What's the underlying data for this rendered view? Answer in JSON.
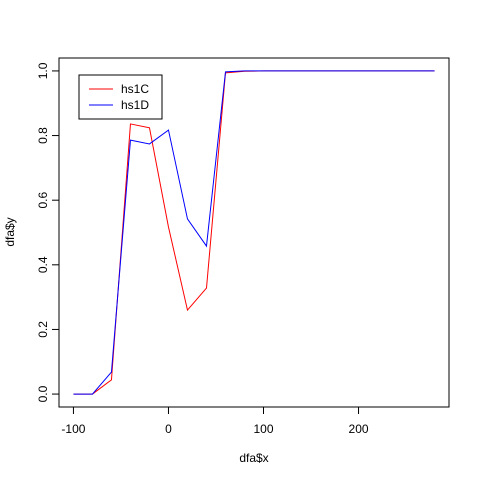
{
  "chart_data": {
    "type": "line",
    "x": [
      -100,
      -80,
      -60,
      -40,
      -20,
      0,
      20,
      40,
      60,
      80,
      100,
      120,
      140,
      160,
      180,
      200,
      220,
      240,
      260,
      280
    ],
    "series": [
      {
        "name": "hs1C",
        "color": "#ff0000",
        "values": [
          0,
          0,
          0.044,
          0.836,
          0.824,
          0.517,
          0.26,
          0.328,
          0.994,
          0.999,
          1,
          1,
          1,
          1,
          1,
          1,
          1,
          1,
          1,
          1
        ]
      },
      {
        "name": "hs1D",
        "color": "#0000ff",
        "values": [
          0,
          0,
          0.068,
          0.786,
          0.774,
          0.817,
          0.542,
          0.458,
          0.997,
          1,
          1,
          1,
          1,
          1,
          1,
          1,
          1,
          1,
          1,
          1
        ]
      }
    ],
    "xlabel": "dfa$x",
    "ylabel": "dfa$y",
    "xlim": [
      -115.2,
      295.2
    ],
    "ylim": [
      -0.04,
      1.04
    ],
    "xticks": [
      -100,
      0,
      100,
      200
    ],
    "yticks": [
      {
        "value": 0,
        "label": "0.0"
      },
      {
        "value": 0.2,
        "label": "0.2"
      },
      {
        "value": 0.4,
        "label": "0.4"
      },
      {
        "value": 0.6,
        "label": "0.6"
      },
      {
        "value": 0.8,
        "label": "0.8"
      },
      {
        "value": 1,
        "label": "1.0"
      }
    ],
    "legend": "top-left"
  }
}
